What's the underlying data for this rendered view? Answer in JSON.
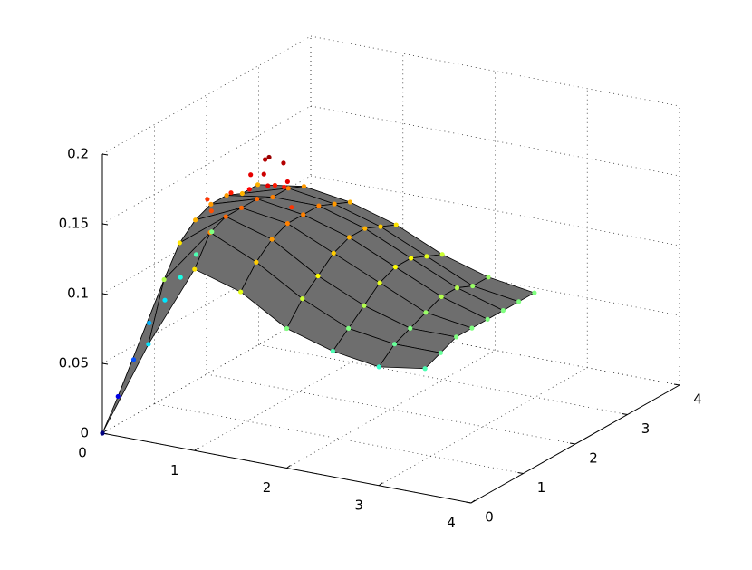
{
  "chart_data": {
    "type": "surface3d",
    "xlim": [
      0,
      4
    ],
    "ylim": [
      0,
      4
    ],
    "zlim": [
      0,
      0.2
    ],
    "xticks": [
      0,
      1,
      2,
      3,
      4
    ],
    "yticks": [
      0,
      1,
      2,
      3,
      4
    ],
    "zticks": [
      0,
      0.05,
      0.1,
      0.15,
      0.2
    ],
    "grid": true,
    "colormap": "jet",
    "face_color": "#6e6e6e",
    "edge_color": "#000000",
    "surface": {
      "x": [
        0,
        0.5,
        1,
        1.5,
        2,
        2.5,
        3,
        3.5
      ],
      "y": [
        0,
        0.3,
        0.6,
        0.9,
        1.2,
        1.5,
        1.8,
        2.1
      ],
      "z": [
        [
          0,
          0.07,
          0.13,
          0.12,
          0.1,
          0.09,
          0.085,
          0.09
        ],
        [
          0.02,
          0.11,
          0.15,
          0.135,
          0.115,
          0.1,
          0.095,
          0.095
        ],
        [
          0.04,
          0.13,
          0.155,
          0.145,
          0.125,
          0.11,
          0.1,
          0.1
        ],
        [
          0.06,
          0.14,
          0.155,
          0.15,
          0.135,
          0.12,
          0.105,
          0.1
        ],
        [
          0.07,
          0.145,
          0.155,
          0.15,
          0.14,
          0.125,
          0.11,
          0.1
        ],
        [
          0.08,
          0.145,
          0.15,
          0.15,
          0.14,
          0.125,
          0.11,
          0.1
        ],
        [
          0.09,
          0.14,
          0.15,
          0.145,
          0.135,
          0.12,
          0.105,
          0.1
        ],
        [
          0.1,
          0.14,
          0.145,
          0.14,
          0.13,
          0.115,
          0.105,
          0.1
        ]
      ]
    },
    "points": {
      "x": [
        1.1,
        1.2,
        1.3,
        1.4,
        1.5,
        1.2,
        1.3,
        1.4,
        1.25,
        1.35,
        0.8,
        0.9,
        1.0,
        1.6
      ],
      "y": [
        0.9,
        1.0,
        0.9,
        1.0,
        0.9,
        0.7,
        0.8,
        0.7,
        1.1,
        1.1,
        0.6,
        0.5,
        0.7,
        0.8
      ],
      "z": [
        0.18,
        0.19,
        0.195,
        0.19,
        0.18,
        0.175,
        0.185,
        0.18,
        0.17,
        0.17,
        0.165,
        0.16,
        0.17,
        0.165
      ]
    }
  }
}
